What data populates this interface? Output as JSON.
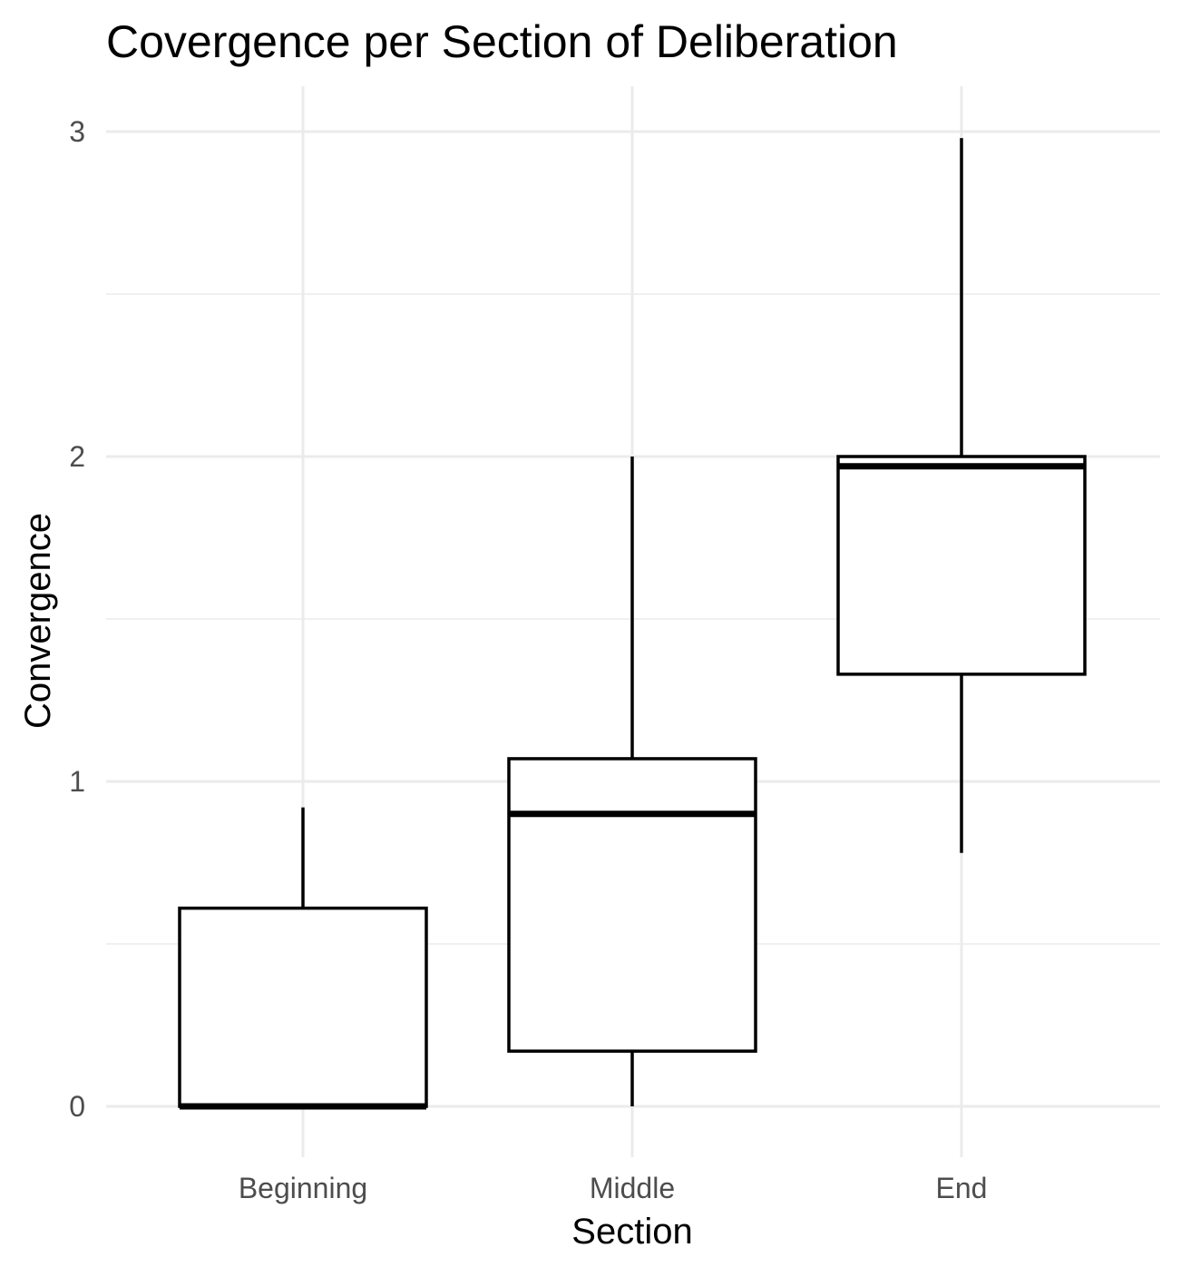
{
  "chart_data": {
    "type": "boxplot",
    "title": "Covergence per Section of Deliberation",
    "xlabel": "Section",
    "ylabel": "Convergence",
    "categories": [
      "Beginning",
      "Middle",
      "End"
    ],
    "ylim": [
      -0.15,
      3.12
    ],
    "yticks": [
      0,
      1,
      2,
      3
    ],
    "grid": true,
    "legend": "none",
    "boxes": [
      {
        "category": "Beginning",
        "whisker_low": 0.0,
        "q1": 0.0,
        "median": 0.0,
        "q3": 0.61,
        "whisker_high": 0.92
      },
      {
        "category": "Middle",
        "whisker_low": 0.0,
        "q1": 0.17,
        "median": 0.9,
        "q3": 1.07,
        "whisker_high": 2.0
      },
      {
        "category": "End",
        "whisker_low": 0.78,
        "q1": 1.33,
        "median": 1.97,
        "q3": 2.0,
        "whisker_high": 2.98
      }
    ],
    "colors": {
      "box_fill": "#ffffff",
      "box_stroke": "#000000",
      "grid": "#ebebeb",
      "tick_text": "#4d4d4d"
    }
  }
}
